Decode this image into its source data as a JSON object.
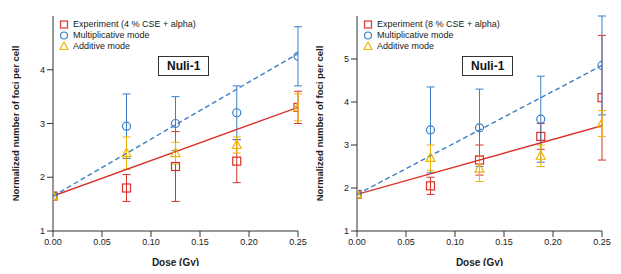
{
  "chart_data": [
    {
      "type": "scatter",
      "annotation": "Nuli-1",
      "x_label": "Dose (Gy)",
      "y_label": "Normalized number of foci per cell",
      "xlim": [
        0,
        0.25
      ],
      "xticks": [
        {
          "value": 0,
          "label": "0.00"
        },
        0.05,
        {
          "value": 0.1,
          "label": "0.10"
        },
        0.15,
        {
          "value": 0.2,
          "label": "0.20"
        },
        0.25
      ],
      "ylim": [
        1,
        5
      ],
      "yticks": [
        1,
        2,
        3,
        4
      ],
      "legend": "upper left",
      "series": [
        {
          "name": "Experiment (4 % CSE + alpha)",
          "color": "#d9322a",
          "marker": "square",
          "x": [
            0,
            0.075,
            0.125,
            0.1875,
            0.25
          ],
          "values": [
            1.65,
            1.8,
            2.2,
            2.3,
            3.3
          ],
          "errors": [
            0,
            0.25,
            0.65,
            0.4,
            0.3
          ],
          "fit": {
            "x": [
              0,
              0.25
            ],
            "values": [
              1.65,
              3.3
            ],
            "line_style": "solid"
          }
        },
        {
          "name": "Multiplicative mode",
          "color": "#3b7fc4",
          "marker": "circle",
          "x": [
            0,
            0.075,
            0.125,
            0.1875,
            0.25
          ],
          "values": [
            1.65,
            2.95,
            3.0,
            3.2,
            4.25
          ],
          "errors": [
            0,
            0.6,
            0.5,
            0.5,
            0.55
          ],
          "fit": {
            "x": [
              0,
              0.25
            ],
            "values": [
              1.65,
              4.3
            ],
            "line_style": "dashed"
          }
        },
        {
          "name": "Additive mode",
          "color": "#f0b400",
          "marker": "triangle",
          "x": [
            0,
            0.075,
            0.125,
            0.1875,
            0.25
          ],
          "values": [
            1.65,
            2.45,
            2.45,
            2.6,
            3.3
          ],
          "errors": [
            0,
            0.3,
            0.2,
            0.15,
            0.25
          ]
        }
      ]
    },
    {
      "type": "scatter",
      "annotation": "Nuli-1",
      "x_label": "Dose (Gy)",
      "y_label": "Normalized number of foci per cell",
      "xlim": [
        0,
        0.25
      ],
      "xticks": [
        {
          "value": 0,
          "label": "0.00"
        },
        0.05,
        {
          "value": 0.1,
          "label": "0.10"
        },
        0.15,
        {
          "value": 0.2,
          "label": "0.20"
        },
        0.25
      ],
      "ylim": [
        1,
        6
      ],
      "yticks": [
        1,
        2,
        3,
        4,
        5
      ],
      "legend": "upper left",
      "series": [
        {
          "name": "Experiment (8 % CSE + alpha)",
          "color": "#d9322a",
          "marker": "square",
          "x": [
            0,
            0.075,
            0.125,
            0.1875,
            0.25
          ],
          "values": [
            1.85,
            2.05,
            2.65,
            3.2,
            4.1
          ],
          "errors": [
            0,
            0.2,
            0.35,
            0.3,
            1.45
          ],
          "fit": {
            "x": [
              0,
              0.25
            ],
            "values": [
              1.85,
              3.45
            ],
            "line_style": "solid"
          }
        },
        {
          "name": "Multiplicative mode",
          "color": "#3b7fc4",
          "marker": "circle",
          "x": [
            0,
            0.075,
            0.125,
            0.1875,
            0.25
          ],
          "values": [
            1.85,
            3.35,
            3.4,
            3.6,
            4.85
          ],
          "errors": [
            0,
            1.0,
            0.9,
            1.0,
            1.15
          ],
          "fit": {
            "x": [
              0,
              0.25
            ],
            "values": [
              1.85,
              4.85
            ],
            "line_style": "dashed"
          }
        },
        {
          "name": "Additive mode",
          "color": "#f0b400",
          "marker": "triangle",
          "x": [
            0,
            0.075,
            0.125,
            0.1875,
            0.25
          ],
          "values": [
            1.85,
            2.7,
            2.45,
            2.75,
            3.5
          ],
          "errors": [
            0,
            0.3,
            0.3,
            0.25,
            0.3
          ]
        }
      ]
    }
  ]
}
